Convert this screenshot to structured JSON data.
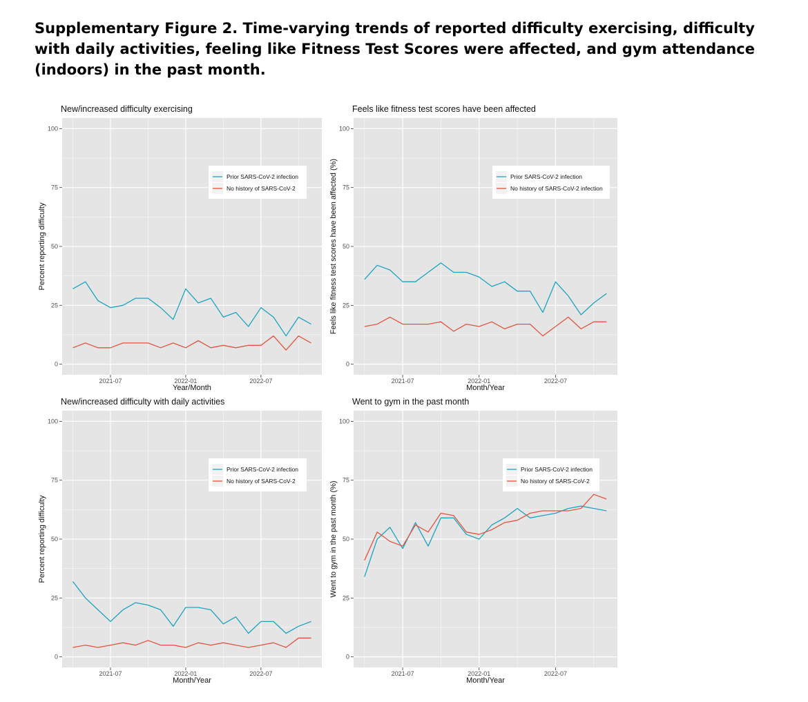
{
  "figure_title": "Supplementary Figure 2. Time-varying trends of reported difficulty exercising, difficulty with daily activities, feeling like Fitness Test Scores were affected, and gym attendance (indoors) in the past month.",
  "colors": {
    "prior": "#1ba3c0",
    "none": "#e4533e",
    "panel_bg": "#e5e5e5",
    "grid": "#ffffff"
  },
  "chart_data": [
    {
      "type": "line",
      "title": "New/increased difficulty exercising",
      "xlabel": "Year/Month",
      "ylabel": "Percent reporting difficulty",
      "ylim": [
        0,
        100
      ],
      "yticks": [
        "0",
        "25",
        "50",
        "75",
        "100"
      ],
      "xticks": [
        "2021-07",
        "2022-01",
        "2022-07"
      ],
      "legend": [
        "Prior SARS-CoV-2 infection",
        "No history of SARS-CoV-2"
      ],
      "x": [
        "2021-04",
        "2021-05",
        "2021-06",
        "2021-07",
        "2021-08",
        "2021-09",
        "2021-10",
        "2021-11",
        "2021-12",
        "2022-01",
        "2022-02",
        "2022-03",
        "2022-04",
        "2022-05",
        "2022-06",
        "2022-07",
        "2022-08",
        "2022-09",
        "2022-10",
        "2022-11"
      ],
      "series": [
        {
          "name": "Prior SARS-CoV-2 infection",
          "values": [
            32,
            35,
            27,
            24,
            25,
            28,
            28,
            24,
            19,
            32,
            26,
            28,
            20,
            22,
            16,
            24,
            20,
            12,
            20,
            17
          ]
        },
        {
          "name": "No history of SARS-CoV-2",
          "values": [
            7,
            9,
            7,
            7,
            9,
            9,
            9,
            7,
            9,
            7,
            10,
            7,
            8,
            7,
            8,
            8,
            12,
            6,
            12,
            9
          ]
        }
      ]
    },
    {
      "type": "line",
      "title": "Feels like fitness test scores have been affected",
      "xlabel": "Month/Year",
      "ylabel": "Feels like fitness test scores have been affected (%)",
      "ylim": [
        0,
        100
      ],
      "yticks": [
        "0",
        "25",
        "50",
        "75",
        "100"
      ],
      "xticks": [
        "2021-07",
        "2022-01",
        "2022-07"
      ],
      "legend": [
        "Prior SARS-CoV-2 infection",
        "No history of SARS-CoV-2 infection"
      ],
      "x": [
        "2021-04",
        "2021-05",
        "2021-06",
        "2021-07",
        "2021-08",
        "2021-09",
        "2021-10",
        "2021-11",
        "2021-12",
        "2022-01",
        "2022-02",
        "2022-03",
        "2022-04",
        "2022-05",
        "2022-06",
        "2022-07",
        "2022-08",
        "2022-09",
        "2022-10",
        "2022-11"
      ],
      "series": [
        {
          "name": "Prior SARS-CoV-2 infection",
          "values": [
            36,
            42,
            40,
            35,
            35,
            39,
            43,
            39,
            39,
            37,
            33,
            35,
            31,
            31,
            22,
            35,
            29,
            21,
            26,
            30
          ]
        },
        {
          "name": "No history of SARS-CoV-2 infection",
          "values": [
            16,
            17,
            20,
            17,
            17,
            17,
            18,
            14,
            17,
            16,
            18,
            15,
            17,
            17,
            12,
            16,
            20,
            15,
            18,
            18
          ]
        }
      ]
    },
    {
      "type": "line",
      "title": "New/increased difficulty with daily activities",
      "xlabel": "Month/Year",
      "ylabel": "Percent reporting difficulty",
      "ylim": [
        0,
        100
      ],
      "yticks": [
        "0",
        "25",
        "50",
        "75",
        "100"
      ],
      "xticks": [
        "2021-07",
        "2022-01",
        "2022-07"
      ],
      "legend": [
        "Prior SARS-CoV-2 infection",
        "No history of SARS-CoV-2"
      ],
      "x": [
        "2021-04",
        "2021-05",
        "2021-06",
        "2021-07",
        "2021-08",
        "2021-09",
        "2021-10",
        "2021-11",
        "2021-12",
        "2022-01",
        "2022-02",
        "2022-03",
        "2022-04",
        "2022-05",
        "2022-06",
        "2022-07",
        "2022-08",
        "2022-09",
        "2022-10",
        "2022-11"
      ],
      "series": [
        {
          "name": "Prior SARS-CoV-2 infection",
          "values": [
            32,
            25,
            20,
            15,
            20,
            23,
            22,
            20,
            13,
            21,
            21,
            20,
            14,
            17,
            10,
            15,
            15,
            10,
            13,
            15
          ]
        },
        {
          "name": "No history of SARS-CoV-2",
          "values": [
            4,
            5,
            4,
            5,
            6,
            5,
            7,
            5,
            5,
            4,
            6,
            5,
            6,
            5,
            4,
            5,
            6,
            4,
            8,
            8
          ]
        }
      ]
    },
    {
      "type": "line",
      "title": "Went to gym in the past month",
      "xlabel": "Month/Year",
      "ylabel": "Went to gym in the past month (%)",
      "ylim": [
        0,
        100
      ],
      "yticks": [
        "0",
        "25",
        "50",
        "75",
        "100"
      ],
      "xticks": [
        "2021-07",
        "2022-01",
        "2022-07"
      ],
      "legend": [
        "Prior SARS-CoV-2 infection",
        "No history of SARS-CoV-2"
      ],
      "x": [
        "2021-04",
        "2021-05",
        "2021-06",
        "2021-07",
        "2021-08",
        "2021-09",
        "2021-10",
        "2021-11",
        "2021-12",
        "2022-01",
        "2022-02",
        "2022-03",
        "2022-04",
        "2022-05",
        "2022-06",
        "2022-07",
        "2022-08",
        "2022-09",
        "2022-10",
        "2022-11"
      ],
      "series": [
        {
          "name": "Prior SARS-CoV-2 infection",
          "values": [
            34,
            50,
            55,
            46,
            57,
            47,
            59,
            59,
            52,
            50,
            56,
            59,
            63,
            59,
            60,
            61,
            63,
            64,
            63,
            62
          ]
        },
        {
          "name": "No history of SARS-CoV-2",
          "values": [
            41,
            53,
            49,
            47,
            56,
            53,
            61,
            60,
            53,
            52,
            54,
            57,
            58,
            61,
            62,
            62,
            62,
            63,
            69,
            67
          ]
        }
      ]
    }
  ]
}
